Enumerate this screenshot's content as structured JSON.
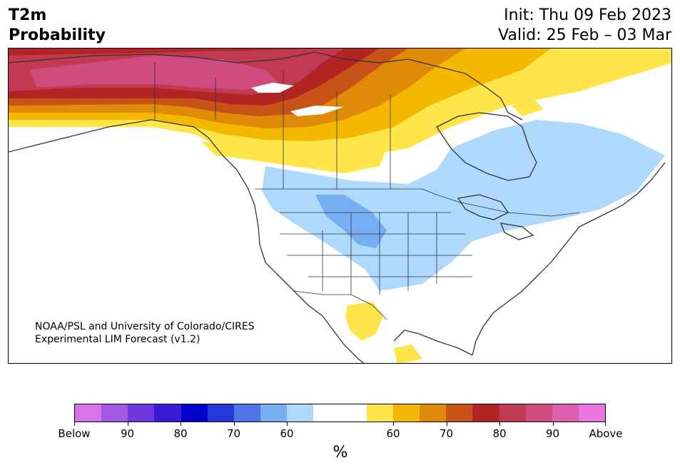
{
  "header": {
    "variable": "T2m",
    "product": "Probability",
    "init": "Init: Thu 09 Feb 2023",
    "valid": "Valid: 25 Feb – 03 Mar"
  },
  "credit": {
    "line1": "NOAA/PSL and University of Colorado/CIRES",
    "line2": "Experimental LIM Forecast (v1.2)"
  },
  "colorbar": {
    "colors": [
      "#d673ea",
      "#a257e2",
      "#6f38de",
      "#3b1ad8",
      "#0000cc",
      "#2638d8",
      "#4f75e6",
      "#75aef2",
      "#aed9fc",
      "#ffffff",
      "#ffffff",
      "#ffe44a",
      "#f4b800",
      "#e08a0a",
      "#c85318",
      "#b32424",
      "#c23a52",
      "#d04c7e",
      "#dc60ac",
      "#e976e0"
    ],
    "labels": [
      "Below",
      "90",
      "80",
      "70",
      "60",
      "60",
      "70",
      "80",
      "90",
      "Above"
    ],
    "unit": "%"
  },
  "map": {
    "background": "#ffffff",
    "outline_color": "#333333"
  }
}
